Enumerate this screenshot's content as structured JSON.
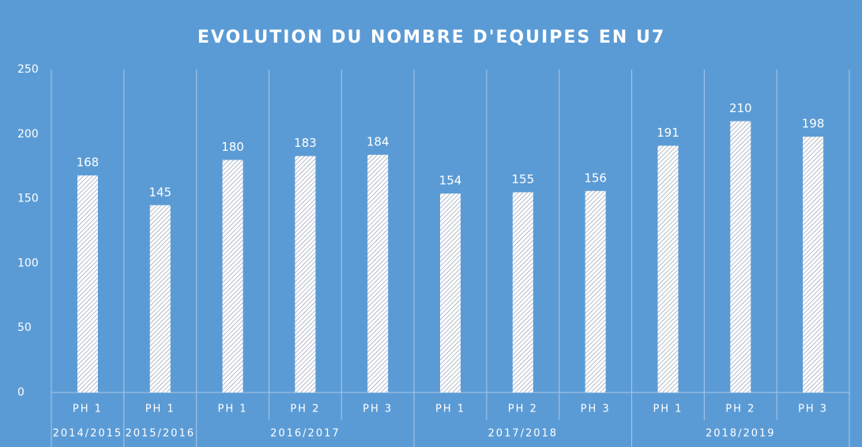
{
  "chart_data": {
    "type": "bar",
    "title": "EVOLUTION DU NOMBRE D'EQUIPES EN U7",
    "groups": [
      {
        "name": "2014/2015",
        "categories": [
          "PH 1"
        ],
        "values": [
          168
        ]
      },
      {
        "name": "2015/2016",
        "categories": [
          "PH 1"
        ],
        "values": [
          145
        ]
      },
      {
        "name": "2016/2017",
        "categories": [
          "PH 1",
          "PH 2",
          "PH 3"
        ],
        "values": [
          180,
          183,
          184
        ]
      },
      {
        "name": "2017/2018",
        "categories": [
          "PH 1",
          "PH 2",
          "PH 3"
        ],
        "values": [
          154,
          155,
          156
        ]
      },
      {
        "name": "2018/2019",
        "categories": [
          "PH 1",
          "PH 2",
          "PH 3"
        ],
        "values": [
          191,
          210,
          198
        ]
      }
    ],
    "ylim": [
      0,
      250
    ],
    "yticks": [
      0,
      50,
      100,
      150,
      200,
      250
    ],
    "grid": false
  }
}
